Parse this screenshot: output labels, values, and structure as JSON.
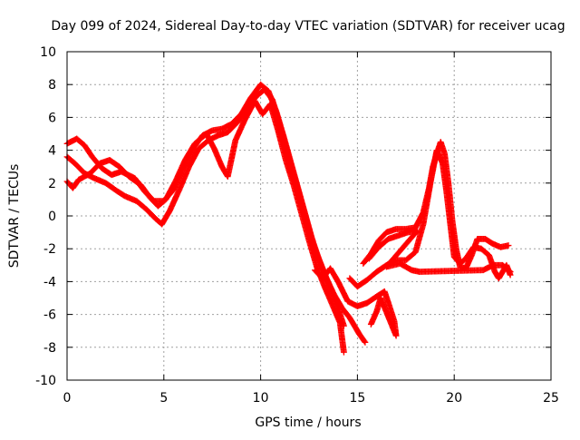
{
  "chart_data": {
    "type": "scatter",
    "title": "Day 099 of 2024, Sidereal Day-to-day VTEC variation (SDTVAR) for receiver ucag",
    "xlabel": "GPS time / hours",
    "ylabel": "SDTVAR / TECUs",
    "xlim": [
      0,
      25
    ],
    "ylim": [
      -10,
      10
    ],
    "xticks": [
      "0",
      "5",
      "10",
      "15",
      "20",
      "25"
    ],
    "yticks": [
      "-10",
      "-8",
      "-6",
      "-4",
      "-2",
      "0",
      "2",
      "4",
      "6",
      "8",
      "10"
    ],
    "grid": true,
    "marker": "+",
    "color": "#ff0000",
    "series": [
      {
        "name": "track-1",
        "points": [
          [
            0,
            4.4
          ],
          [
            0.5,
            4.7
          ],
          [
            0.9,
            4.3
          ],
          [
            1.3,
            3.6
          ],
          [
            1.8,
            2.9
          ],
          [
            2.3,
            2.5
          ],
          [
            2.8,
            2.7
          ],
          [
            3.5,
            2.3
          ],
          [
            4.0,
            1.5
          ],
          [
            4.5,
            0.9
          ],
          [
            5.0,
            0.9
          ],
          [
            5.5,
            1.6
          ],
          [
            6.0,
            2.9
          ],
          [
            6.5,
            4.1
          ],
          [
            7.0,
            4.9
          ],
          [
            7.5,
            5.2
          ],
          [
            8.0,
            5.3
          ],
          [
            8.5,
            5.6
          ],
          [
            9.0,
            6.2
          ],
          [
            9.5,
            7.2
          ],
          [
            10.0,
            8.0
          ],
          [
            10.4,
            7.6
          ],
          [
            10.8,
            6.4
          ],
          [
            11.2,
            4.8
          ],
          [
            11.6,
            3.1
          ],
          [
            12.0,
            1.4
          ],
          [
            12.4,
            -0.3
          ],
          [
            12.8,
            -2.0
          ],
          [
            13.2,
            -3.2
          ],
          [
            13.6,
            -4.4
          ],
          [
            14.0,
            -5.6
          ],
          [
            14.3,
            -6.7
          ]
        ]
      },
      {
        "name": "track-2",
        "points": [
          [
            0,
            3.6
          ],
          [
            0.4,
            3.2
          ],
          [
            0.9,
            2.6
          ],
          [
            1.4,
            2.3
          ],
          [
            2.0,
            2.0
          ],
          [
            2.6,
            1.5
          ],
          [
            3.0,
            1.2
          ],
          [
            3.6,
            0.9
          ],
          [
            4.1,
            0.4
          ],
          [
            4.6,
            -0.2
          ],
          [
            4.9,
            -0.5
          ],
          [
            5.3,
            0.3
          ],
          [
            5.8,
            1.6
          ],
          [
            6.3,
            3.0
          ],
          [
            6.8,
            4.1
          ],
          [
            7.3,
            4.6
          ],
          [
            7.8,
            4.9
          ],
          [
            8.3,
            5.1
          ],
          [
            8.8,
            5.7
          ],
          [
            9.3,
            6.6
          ],
          [
            9.8,
            7.3
          ],
          [
            10.2,
            7.7
          ],
          [
            10.6,
            7.1
          ],
          [
            11.0,
            5.5
          ],
          [
            11.4,
            3.8
          ],
          [
            11.8,
            2.2
          ],
          [
            12.2,
            0.5
          ],
          [
            12.6,
            -1.2
          ],
          [
            13.0,
            -2.6
          ],
          [
            13.4,
            -3.8
          ],
          [
            13.8,
            -4.8
          ],
          [
            14.2,
            -5.6
          ],
          [
            14.6,
            -6.2
          ],
          [
            15.1,
            -7.2
          ],
          [
            15.4,
            -7.7
          ]
        ]
      },
      {
        "name": "track-3",
        "points": [
          [
            0,
            2.1
          ],
          [
            0.3,
            1.7
          ],
          [
            0.6,
            2.2
          ],
          [
            1.2,
            2.6
          ],
          [
            1.7,
            3.2
          ],
          [
            2.2,
            3.4
          ],
          [
            2.7,
            3.0
          ],
          [
            3.2,
            2.4
          ],
          [
            3.8,
            1.9
          ],
          [
            4.3,
            1.1
          ],
          [
            4.7,
            0.6
          ],
          [
            5.1,
            1.0
          ],
          [
            5.6,
            2.1
          ],
          [
            6.1,
            3.4
          ],
          [
            6.6,
            4.4
          ],
          [
            7.2,
            5.0
          ],
          [
            7.6,
            4.1
          ],
          [
            8.0,
            3.0
          ],
          [
            8.3,
            2.4
          ],
          [
            8.7,
            4.6
          ],
          [
            9.2,
            5.9
          ],
          [
            9.7,
            7.0
          ],
          [
            10.1,
            6.2
          ],
          [
            10.5,
            6.8
          ],
          [
            10.9,
            5.2
          ],
          [
            11.3,
            3.4
          ],
          [
            11.7,
            1.9
          ],
          [
            12.1,
            0.2
          ],
          [
            12.5,
            -1.5
          ],
          [
            12.9,
            -3.1
          ],
          [
            13.3,
            -4.3
          ],
          [
            13.7,
            -5.4
          ],
          [
            14.1,
            -6.5
          ],
          [
            14.3,
            -8.3
          ]
        ]
      },
      {
        "name": "track-4",
        "points": [
          [
            12.8,
            -3.3
          ],
          [
            13.2,
            -3.8
          ],
          [
            13.6,
            -3.2
          ],
          [
            14.0,
            -4.0
          ],
          [
            14.5,
            -5.2
          ],
          [
            15.0,
            -5.5
          ],
          [
            15.5,
            -5.3
          ],
          [
            16.0,
            -4.9
          ],
          [
            16.4,
            -4.6
          ],
          [
            16.6,
            -5.3
          ],
          [
            16.9,
            -6.4
          ],
          [
            17.0,
            -7.3
          ],
          [
            16.2,
            -5.0
          ],
          [
            16.0,
            -5.8
          ],
          [
            15.7,
            -6.6
          ]
        ]
      },
      {
        "name": "track-5",
        "points": [
          [
            15.3,
            -2.9
          ],
          [
            15.7,
            -2.3
          ],
          [
            16.1,
            -1.5
          ],
          [
            16.5,
            -1.0
          ],
          [
            17.0,
            -0.8
          ],
          [
            17.5,
            -0.8
          ],
          [
            18.0,
            -0.7
          ],
          [
            18.4,
            0.2
          ],
          [
            18.7,
            1.7
          ],
          [
            18.9,
            3.0
          ],
          [
            19.1,
            3.8
          ],
          [
            19.3,
            4.5
          ],
          [
            19.5,
            3.8
          ],
          [
            19.7,
            2.0
          ],
          [
            19.9,
            -0.3
          ],
          [
            20.1,
            -2.0
          ],
          [
            20.3,
            -3.1
          ],
          [
            20.6,
            -3.2
          ],
          [
            20.9,
            -2.4
          ],
          [
            21.2,
            -1.4
          ],
          [
            21.6,
            -1.4
          ],
          [
            22.0,
            -1.7
          ],
          [
            22.4,
            -1.9
          ],
          [
            22.8,
            -1.8
          ]
        ]
      },
      {
        "name": "track-6",
        "points": [
          [
            14.6,
            -3.8
          ],
          [
            15.0,
            -4.3
          ],
          [
            15.5,
            -3.9
          ],
          [
            16.0,
            -3.4
          ],
          [
            16.5,
            -3.0
          ],
          [
            17.0,
            -2.7
          ],
          [
            17.5,
            -2.7
          ],
          [
            18.0,
            -2.2
          ],
          [
            18.4,
            -0.5
          ],
          [
            18.8,
            2.2
          ],
          [
            19.1,
            4.0
          ],
          [
            19.4,
            3.2
          ],
          [
            19.6,
            1.5
          ],
          [
            19.8,
            -0.5
          ],
          [
            20.0,
            -2.5
          ],
          [
            20.3,
            -2.9
          ],
          [
            20.6,
            -2.6
          ],
          [
            21.0,
            -1.9
          ],
          [
            21.4,
            -2.0
          ],
          [
            21.8,
            -2.4
          ],
          [
            22.1,
            -3.4
          ],
          [
            22.3,
            -3.8
          ],
          [
            22.7,
            -3.0
          ],
          [
            22.9,
            -3.6
          ]
        ]
      },
      {
        "name": "track-7",
        "points": [
          [
            15.6,
            -2.6
          ],
          [
            16.1,
            -1.9
          ],
          [
            16.6,
            -1.4
          ],
          [
            17.1,
            -1.2
          ],
          [
            17.6,
            -1.0
          ],
          [
            18.1,
            -0.9
          ],
          [
            16.5,
            -3.1
          ],
          [
            17.2,
            -2.9
          ],
          [
            17.8,
            -3.3
          ],
          [
            18.2,
            -3.4
          ],
          [
            21.5,
            -3.3
          ],
          [
            22.0,
            -3.0
          ],
          [
            22.5,
            -3.0
          ],
          [
            22.9,
            -3.4
          ]
        ]
      }
    ]
  }
}
